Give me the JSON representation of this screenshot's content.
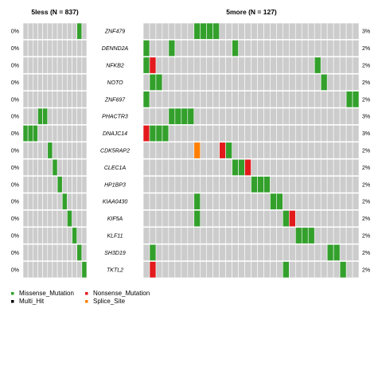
{
  "chart_data": {
    "type": "heatmap",
    "subtype": "oncoplot",
    "background_color": "#cccccc",
    "colors": {
      "Missense_Mutation": "#33a02c",
      "Nonsense_Mutation": "#e31a1c",
      "Multi_Hit": "#000000",
      "Splice_Site": "#ff7f00"
    },
    "genes": [
      "ZNF479",
      "DENND2A",
      "NFKB2",
      "NOTO",
      "ZNF697",
      "PHACTR3",
      "DNAJC14",
      "CDK5RAP2",
      "CLEC1A",
      "HP1BP3",
      "KIAA0430",
      "KIF5A",
      "KLF11",
      "SH3D19",
      "TKTL2"
    ],
    "panels": [
      {
        "title": "5less (N = 837)",
        "n_columns": 13,
        "pct": [
          "0%",
          "0%",
          "0%",
          "0%",
          "0%",
          "0%",
          "0%",
          "0%",
          "0%",
          "0%",
          "0%",
          "0%",
          "0%",
          "0%",
          "0%"
        ],
        "cells": [
          {
            "gene": "ZNF479",
            "col": 11,
            "type": "Missense_Mutation"
          },
          {
            "gene": "PHACTR3",
            "col": 3,
            "type": "Missense_Mutation"
          },
          {
            "gene": "PHACTR3",
            "col": 4,
            "type": "Missense_Mutation"
          },
          {
            "gene": "DNAJC14",
            "col": 0,
            "type": "Missense_Mutation"
          },
          {
            "gene": "DNAJC14",
            "col": 1,
            "type": "Missense_Mutation"
          },
          {
            "gene": "DNAJC14",
            "col": 2,
            "type": "Missense_Mutation"
          },
          {
            "gene": "CDK5RAP2",
            "col": 5,
            "type": "Missense_Mutation"
          },
          {
            "gene": "CLEC1A",
            "col": 6,
            "type": "Missense_Mutation"
          },
          {
            "gene": "HP1BP3",
            "col": 7,
            "type": "Missense_Mutation"
          },
          {
            "gene": "KIAA0430",
            "col": 8,
            "type": "Missense_Mutation"
          },
          {
            "gene": "KIF5A",
            "col": 9,
            "type": "Missense_Mutation"
          },
          {
            "gene": "KLF11",
            "col": 10,
            "type": "Missense_Mutation"
          },
          {
            "gene": "SH3D19",
            "col": 11,
            "type": "Missense_Mutation"
          },
          {
            "gene": "TKTL2",
            "col": 12,
            "type": "Missense_Mutation"
          }
        ]
      },
      {
        "title": "5more (N = 127)",
        "n_columns": 34,
        "pct": [
          "3%",
          "2%",
          "2%",
          "2%",
          "2%",
          "3%",
          "3%",
          "2%",
          "2%",
          "2%",
          "2%",
          "2%",
          "2%",
          "2%",
          "2%"
        ],
        "cells": [
          {
            "gene": "ZNF479",
            "col": 8,
            "type": "Missense_Mutation"
          },
          {
            "gene": "ZNF479",
            "col": 9,
            "type": "Missense_Mutation"
          },
          {
            "gene": "ZNF479",
            "col": 10,
            "type": "Missense_Mutation"
          },
          {
            "gene": "ZNF479",
            "col": 11,
            "type": "Missense_Mutation"
          },
          {
            "gene": "DENND2A",
            "col": 0,
            "type": "Missense_Mutation"
          },
          {
            "gene": "DENND2A",
            "col": 4,
            "type": "Missense_Mutation"
          },
          {
            "gene": "DENND2A",
            "col": 14,
            "type": "Missense_Mutation"
          },
          {
            "gene": "NFKB2",
            "col": 0,
            "type": "Missense_Mutation"
          },
          {
            "gene": "NFKB2",
            "col": 1,
            "type": "Nonsense_Mutation"
          },
          {
            "gene": "NFKB2",
            "col": 27,
            "type": "Missense_Mutation"
          },
          {
            "gene": "NOTO",
            "col": 1,
            "type": "Missense_Mutation"
          },
          {
            "gene": "NOTO",
            "col": 2,
            "type": "Missense_Mutation"
          },
          {
            "gene": "NOTO",
            "col": 28,
            "type": "Missense_Mutation"
          },
          {
            "gene": "ZNF697",
            "col": 0,
            "type": "Missense_Mutation"
          },
          {
            "gene": "ZNF697",
            "col": 32,
            "type": "Missense_Mutation"
          },
          {
            "gene": "ZNF697",
            "col": 33,
            "type": "Missense_Mutation"
          },
          {
            "gene": "PHACTR3",
            "col": 4,
            "type": "Missense_Mutation"
          },
          {
            "gene": "PHACTR3",
            "col": 5,
            "type": "Missense_Mutation"
          },
          {
            "gene": "PHACTR3",
            "col": 6,
            "type": "Missense_Mutation"
          },
          {
            "gene": "PHACTR3",
            "col": 7,
            "type": "Missense_Mutation"
          },
          {
            "gene": "DNAJC14",
            "col": 0,
            "type": "Nonsense_Mutation"
          },
          {
            "gene": "DNAJC14",
            "col": 1,
            "type": "Missense_Mutation"
          },
          {
            "gene": "DNAJC14",
            "col": 2,
            "type": "Missense_Mutation"
          },
          {
            "gene": "DNAJC14",
            "col": 3,
            "type": "Missense_Mutation"
          },
          {
            "gene": "CDK5RAP2",
            "col": 8,
            "type": "Splice_Site"
          },
          {
            "gene": "CDK5RAP2",
            "col": 12,
            "type": "Nonsense_Mutation"
          },
          {
            "gene": "CDK5RAP2",
            "col": 13,
            "type": "Missense_Mutation"
          },
          {
            "gene": "CLEC1A",
            "col": 14,
            "type": "Missense_Mutation"
          },
          {
            "gene": "CLEC1A",
            "col": 15,
            "type": "Missense_Mutation"
          },
          {
            "gene": "CLEC1A",
            "col": 16,
            "type": "Nonsense_Mutation"
          },
          {
            "gene": "HP1BP3",
            "col": 17,
            "type": "Missense_Mutation"
          },
          {
            "gene": "HP1BP3",
            "col": 18,
            "type": "Missense_Mutation"
          },
          {
            "gene": "HP1BP3",
            "col": 19,
            "type": "Missense_Mutation"
          },
          {
            "gene": "KIAA0430",
            "col": 8,
            "type": "Missense_Mutation"
          },
          {
            "gene": "KIAA0430",
            "col": 20,
            "type": "Missense_Mutation"
          },
          {
            "gene": "KIAA0430",
            "col": 21,
            "type": "Missense_Mutation"
          },
          {
            "gene": "KIF5A",
            "col": 8,
            "type": "Missense_Mutation"
          },
          {
            "gene": "KIF5A",
            "col": 22,
            "type": "Missense_Mutation"
          },
          {
            "gene": "KIF5A",
            "col": 23,
            "type": "Nonsense_Mutation"
          },
          {
            "gene": "KLF11",
            "col": 24,
            "type": "Missense_Mutation"
          },
          {
            "gene": "KLF11",
            "col": 25,
            "type": "Missense_Mutation"
          },
          {
            "gene": "KLF11",
            "col": 26,
            "type": "Missense_Mutation"
          },
          {
            "gene": "SH3D19",
            "col": 1,
            "type": "Missense_Mutation"
          },
          {
            "gene": "SH3D19",
            "col": 29,
            "type": "Missense_Mutation"
          },
          {
            "gene": "SH3D19",
            "col": 30,
            "type": "Missense_Mutation"
          },
          {
            "gene": "TKTL2",
            "col": 1,
            "type": "Nonsense_Mutation"
          },
          {
            "gene": "TKTL2",
            "col": 22,
            "type": "Missense_Mutation"
          },
          {
            "gene": "TKTL2",
            "col": 31,
            "type": "Missense_Mutation"
          }
        ]
      }
    ],
    "legend": {
      "placement": "bottom-left",
      "items": [
        {
          "label": "Missense_Mutation",
          "key": "Missense_Mutation"
        },
        {
          "label": "Nonsense_Mutation",
          "key": "Nonsense_Mutation"
        },
        {
          "label": "Multi_Hit",
          "key": "Multi_Hit"
        },
        {
          "label": "Splice_Site",
          "key": "Splice_Site"
        }
      ]
    }
  }
}
